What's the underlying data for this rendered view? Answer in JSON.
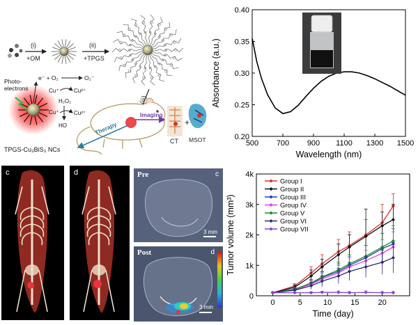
{
  "schematic": {
    "step1": "(i)",
    "step1_reagent": "+OM",
    "step2": "(ii)",
    "step2_reagent": "+TPGS",
    "step3": "(iii)",
    "photoelectrons": "Photo-\nelectrons",
    "reaction_o2": "e⁻ + O₂",
    "reaction_o2_product": "O₂⁻",
    "cu_plus_1": "Cu⁺",
    "cu_2plus_1": "Cu²⁺",
    "h2o2": "H₂O₂",
    "cu_plus_2": "Cu⁺",
    "cu_2plus_2": "Cu²⁺",
    "ho": "HO",
    "therapy": "Therapy",
    "imaging": "Imaging",
    "ct": "CT",
    "plus": "+",
    "msot": "MSOT",
    "nc_label": "TPGS-Cu₃BiS₃ NCs"
  },
  "absorbance_panel": {
    "chart_data": {
      "type": "line",
      "title": "",
      "xlabel": "Wavelength (nm)",
      "ylabel": "Absorbance (a.u.)",
      "xlim": [
        500,
        1500
      ],
      "ylim": [
        0.2,
        0.4
      ],
      "xticks": [
        500,
        700,
        900,
        1100,
        1300,
        1500
      ],
      "yticks": [
        0.2,
        0.25,
        0.3,
        0.35,
        0.4
      ],
      "x": [
        500,
        530,
        560,
        600,
        650,
        700,
        750,
        800,
        850,
        900,
        950,
        1000,
        1050,
        1100,
        1150,
        1200,
        1250,
        1300,
        1350,
        1400,
        1450,
        1500
      ],
      "y": [
        0.355,
        0.318,
        0.292,
        0.266,
        0.245,
        0.236,
        0.239,
        0.249,
        0.263,
        0.276,
        0.287,
        0.295,
        0.3,
        0.302,
        0.302,
        0.3,
        0.296,
        0.291,
        0.285,
        0.279,
        0.272,
        0.265
      ]
    }
  },
  "ct_panels": {
    "label_left": "c",
    "label_right": "d"
  },
  "msot_panels": {
    "pre_label": "Pre",
    "pre_corner": "c",
    "pre_scale": "3 mm",
    "post_label": "Post",
    "post_corner": "d",
    "post_scale": "3 mm"
  },
  "tumor_panel": {
    "chart_data": {
      "type": "line",
      "title": "",
      "xlabel": "Time (day)",
      "ylabel": "Tumor volume (mm³)",
      "xlim": [
        -3,
        25
      ],
      "ylim": [
        0,
        4000
      ],
      "xticks": [
        0,
        5,
        10,
        15,
        20
      ],
      "ytick_labels": [
        "0",
        "1k",
        "2k",
        "3k",
        "4k"
      ],
      "yticks": [
        0,
        1000,
        2000,
        3000,
        4000
      ],
      "x": [
        0,
        4,
        7,
        9,
        12,
        14,
        17,
        20,
        22
      ],
      "series": [
        {
          "name": "Group I",
          "color": "#d9302c",
          "values": [
            100,
            320,
            750,
            1050,
            1450,
            1650,
            2000,
            2400,
            2950
          ]
        },
        {
          "name": "Group II",
          "color": "#111111",
          "values": [
            100,
            280,
            650,
            950,
            1350,
            1600,
            1950,
            2300,
            2500
          ]
        },
        {
          "name": "Group III",
          "color": "#1f3fb4",
          "values": [
            100,
            220,
            400,
            600,
            800,
            1000,
            1250,
            1550,
            1700
          ]
        },
        {
          "name": "Group IV",
          "color": "#e63fd6",
          "values": [
            100,
            200,
            380,
            550,
            750,
            950,
            1150,
            1400,
            1600
          ]
        },
        {
          "name": "Group V",
          "color": "#1a8a2e",
          "values": [
            100,
            210,
            420,
            620,
            850,
            1050,
            1300,
            1600,
            1800
          ]
        },
        {
          "name": "Group VI",
          "color": "#2a2a7a",
          "values": [
            100,
            180,
            330,
            480,
            650,
            800,
            950,
            1100,
            1250
          ]
        },
        {
          "name": "Group VII",
          "color": "#8a3fd6",
          "values": [
            100,
            100,
            100,
            110,
            110,
            100,
            110,
            100,
            100
          ]
        }
      ],
      "errors": [
        [
          20,
          80,
          200,
          300,
          400,
          450,
          500,
          600,
          400
        ],
        [
          20,
          80,
          200,
          250,
          350,
          400,
          900,
          450,
          500
        ],
        [
          20,
          60,
          120,
          180,
          250,
          300,
          400,
          500,
          500
        ],
        [
          20,
          60,
          120,
          180,
          250,
          300,
          350,
          450,
          500
        ],
        [
          20,
          60,
          120,
          180,
          250,
          300,
          350,
          450,
          500
        ],
        [
          20,
          60,
          120,
          180,
          250,
          300,
          350,
          400,
          500
        ],
        [
          10,
          20,
          30,
          40,
          50,
          40,
          50,
          40,
          40
        ]
      ]
    }
  }
}
